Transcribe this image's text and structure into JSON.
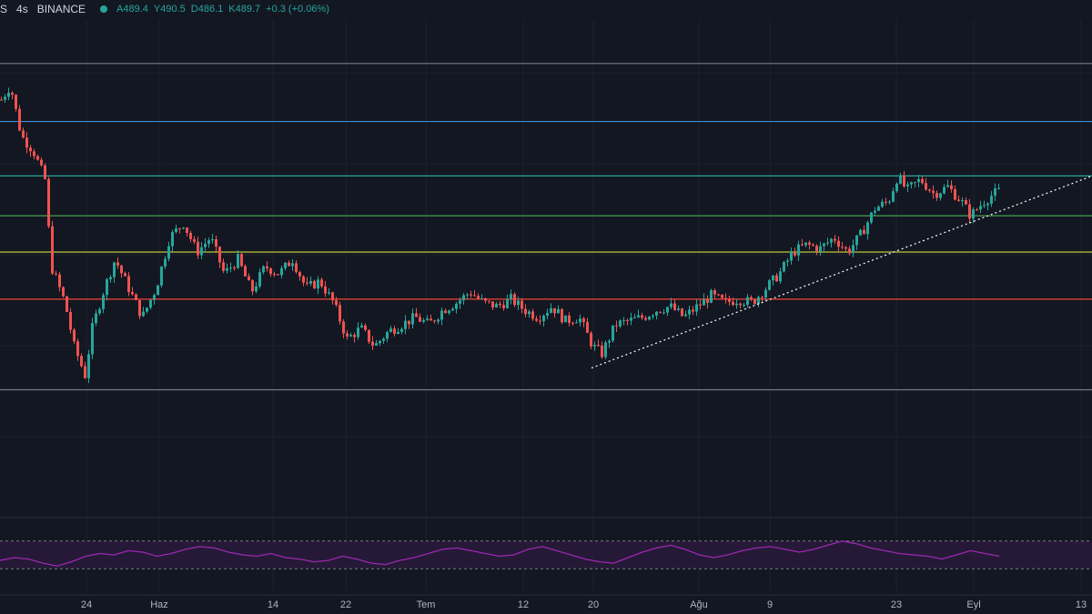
{
  "header": {
    "symbol_fragment": "S",
    "interval": "4s",
    "exchange": "BINANCE",
    "status_color": "#26a69a",
    "open": "A489.4",
    "high": "Y490.5",
    "low": "D486.1",
    "close": "K489.7",
    "change": "+0.3 (+0.06%)"
  },
  "colors": {
    "background": "#131722",
    "up": "#26a69a",
    "down": "#ef5350",
    "rsi": "#9c27b0",
    "rsi_band": "#2a1a3d"
  },
  "chart_data": {
    "type": "candlestick",
    "ylim": [
      395,
      530
    ],
    "x_tick_labels": [
      "24",
      "Haz",
      "14",
      "22",
      "Tem",
      "12",
      "20",
      "Ağu",
      "9",
      "23",
      "Eyl",
      "13"
    ],
    "price_path": [
      [
        0,
        508
      ],
      [
        10,
        512
      ],
      [
        22,
        498
      ],
      [
        35,
        494
      ],
      [
        48,
        486
      ],
      [
        55,
        462
      ],
      [
        70,
        452
      ],
      [
        80,
        440
      ],
      [
        92,
        432
      ],
      [
        100,
        445
      ],
      [
        112,
        455
      ],
      [
        125,
        464
      ],
      [
        140,
        456
      ],
      [
        155,
        448
      ],
      [
        170,
        456
      ],
      [
        185,
        470
      ],
      [
        200,
        474
      ],
      [
        215,
        466
      ],
      [
        230,
        470
      ],
      [
        245,
        460
      ],
      [
        260,
        464
      ],
      [
        275,
        455
      ],
      [
        290,
        462
      ],
      [
        305,
        460
      ],
      [
        320,
        464
      ],
      [
        335,
        456
      ],
      [
        350,
        458
      ],
      [
        365,
        452
      ],
      [
        380,
        442
      ],
      [
        395,
        445
      ],
      [
        410,
        440
      ],
      [
        425,
        444
      ],
      [
        440,
        446
      ],
      [
        455,
        448
      ],
      [
        470,
        446
      ],
      [
        485,
        450
      ],
      [
        500,
        452
      ],
      [
        515,
        455
      ],
      [
        530,
        452
      ],
      [
        545,
        451
      ],
      [
        560,
        453
      ],
      [
        575,
        450
      ],
      [
        590,
        448
      ],
      [
        605,
        451
      ],
      [
        620,
        447
      ],
      [
        635,
        448
      ],
      [
        650,
        440
      ],
      [
        660,
        438
      ],
      [
        675,
        446
      ],
      [
        690,
        447
      ],
      [
        705,
        448
      ],
      [
        720,
        450
      ],
      [
        735,
        451
      ],
      [
        750,
        448
      ],
      [
        765,
        451
      ],
      [
        780,
        454
      ],
      [
        795,
        452
      ],
      [
        810,
        453
      ],
      [
        825,
        452
      ],
      [
        840,
        456
      ],
      [
        855,
        460
      ],
      [
        870,
        466
      ],
      [
        885,
        468
      ],
      [
        900,
        467
      ],
      [
        915,
        470
      ],
      [
        930,
        466
      ],
      [
        945,
        471
      ],
      [
        960,
        478
      ],
      [
        975,
        480
      ],
      [
        985,
        487
      ],
      [
        995,
        483
      ],
      [
        1010,
        486
      ],
      [
        1025,
        482
      ],
      [
        1040,
        484
      ],
      [
        1055,
        480
      ],
      [
        1065,
        476
      ],
      [
        1080,
        480
      ],
      [
        1090,
        482
      ],
      [
        1098,
        483
      ]
    ],
    "horizontal_levels": [
      {
        "price": 518,
        "color": "#787b86"
      },
      {
        "price": 502,
        "color": "#3d8bd9"
      },
      {
        "price": 487,
        "color": "#26a69a"
      },
      {
        "price": 476,
        "color": "#4caf50"
      },
      {
        "price": 466,
        "color": "#cddc39"
      },
      {
        "price": 453,
        "color": "#f44336"
      },
      {
        "price": 428,
        "color": "#787b86"
      }
    ],
    "trendline": {
      "x1": 650,
      "y1": 434,
      "x2": 1200,
      "y2": 487,
      "color": "#ffffff",
      "style": "dotted"
    },
    "indicator": {
      "name": "RSI",
      "band": [
        30,
        70
      ],
      "values": [
        42,
        46,
        44,
        38,
        34,
        40,
        48,
        52,
        50,
        56,
        54,
        48,
        52,
        58,
        62,
        60,
        54,
        50,
        48,
        52,
        46,
        44,
        40,
        42,
        48,
        44,
        38,
        36,
        42,
        46,
        52,
        58,
        60,
        56,
        52,
        48,
        50,
        58,
        62,
        56,
        50,
        44,
        40,
        38,
        46,
        54,
        60,
        64,
        58,
        50,
        46,
        50,
        56,
        60,
        62,
        58,
        54,
        58,
        64,
        70,
        66,
        60,
        56,
        52,
        50,
        48,
        44,
        50,
        56,
        52,
        48
      ]
    }
  }
}
